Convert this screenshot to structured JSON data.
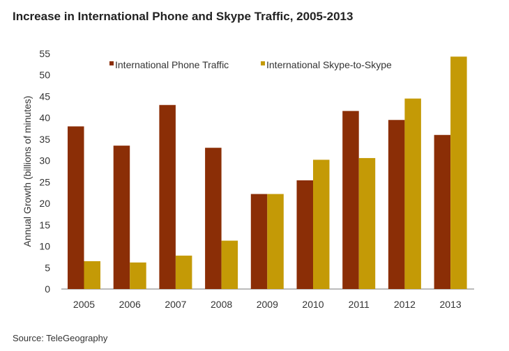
{
  "chart_data": {
    "type": "bar",
    "title": "Increase in International Phone and Skype Traffic, 2005-2013",
    "xlabel": "",
    "ylabel": "Annual Growth (billions of minutes)",
    "ylim": [
      0,
      55
    ],
    "yticks": [
      0,
      5,
      10,
      15,
      20,
      25,
      30,
      35,
      40,
      45,
      50,
      55
    ],
    "grid": false,
    "legend_position": "top",
    "categories": [
      "2005",
      "2006",
      "2007",
      "2008",
      "2009",
      "2010",
      "2011",
      "2012",
      "2013"
    ],
    "series": [
      {
        "name": "International Phone Traffic",
        "color": "#8B2E06",
        "values": [
          38,
          33.5,
          43,
          33,
          22.2,
          25.4,
          41.6,
          39.5,
          36
        ]
      },
      {
        "name": "International Skype-to-Skype",
        "color": "#C49A06",
        "values": [
          6.5,
          6.2,
          7.8,
          11.3,
          22.2,
          30.2,
          30.6,
          44.5,
          54.3
        ]
      }
    ]
  },
  "source": "Source: TeleGeography"
}
